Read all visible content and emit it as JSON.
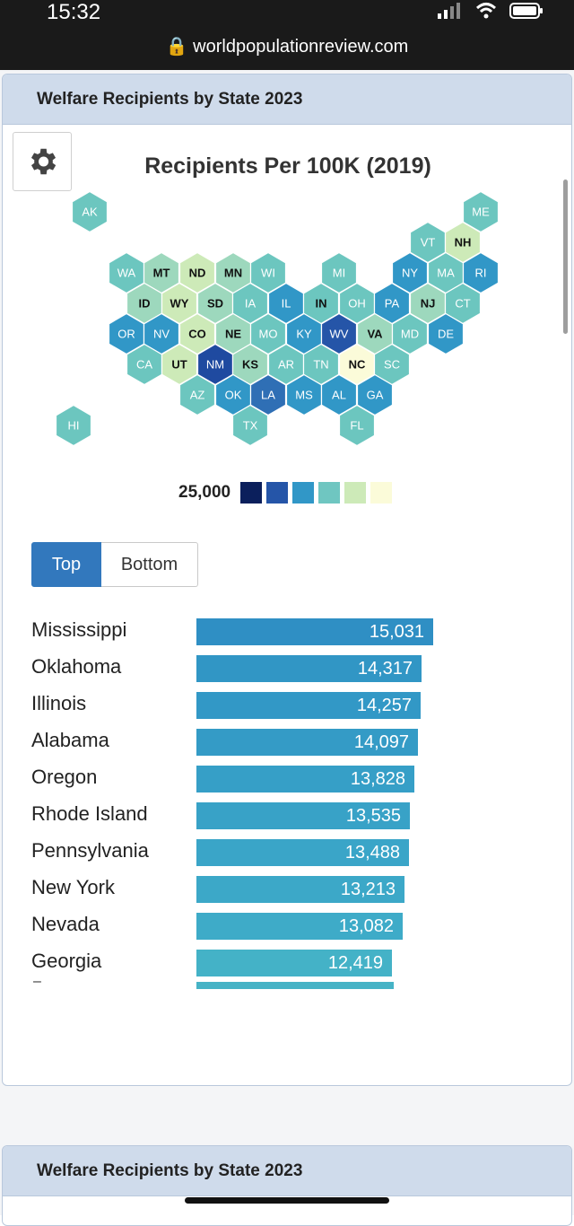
{
  "status": {
    "time": "15:32"
  },
  "browser": {
    "url": "worldpopulationreview.com"
  },
  "card": {
    "header": "Welfare Recipients by State 2023",
    "map_title": "Recipients Per 100K (2019)",
    "legend": {
      "label": "25,000",
      "colors": [
        "#0b1f5c",
        "#2555a8",
        "#3197c7",
        "#6fc6c1",
        "#cdeab8",
        "#fbfbd9"
      ]
    },
    "toggle": {
      "top_label": "Top",
      "bottom_label": "Bottom",
      "selected": "Top"
    },
    "rows": [
      {
        "state": "Mississippi",
        "value": "15,031",
        "fraction": 1.0,
        "color": "#2f8fc4"
      },
      {
        "state": "Oklahoma",
        "value": "14,317",
        "fraction": 0.952,
        "color": "#3196c5"
      },
      {
        "state": "Illinois",
        "value": "14,257",
        "fraction": 0.948,
        "color": "#3298c6"
      },
      {
        "state": "Alabama",
        "value": "14,097",
        "fraction": 0.937,
        "color": "#349bc6"
      },
      {
        "state": "Oregon",
        "value": "13,828",
        "fraction": 0.92,
        "color": "#369fc7"
      },
      {
        "state": "Rhode Island",
        "value": "13,535",
        "fraction": 0.9,
        "color": "#38a2c7"
      },
      {
        "state": "Pennsylvania",
        "value": "13,488",
        "fraction": 0.897,
        "color": "#3aa5c8"
      },
      {
        "state": "New York",
        "value": "13,213",
        "fraction": 0.879,
        "color": "#3ca8c8"
      },
      {
        "state": "Nevada",
        "value": "13,082",
        "fraction": 0.87,
        "color": "#3eabc8"
      },
      {
        "state": "Georgia",
        "value": "12,419",
        "fraction": 0.826,
        "color": "#44b2c7"
      }
    ],
    "trailing_dash": "–"
  },
  "card2": {
    "header": "Welfare Recipients by State 2023"
  },
  "hex_states": [
    {
      "abbr": "AK",
      "color": "#6cc6bf",
      "dark": false
    },
    {
      "abbr": "ME",
      "color": "#6cc6bf",
      "dark": false
    },
    {
      "abbr": "VT",
      "color": "#6cc6bf",
      "dark": false
    },
    {
      "abbr": "NH",
      "color": "#cdeab8",
      "dark": true
    },
    {
      "abbr": "WA",
      "color": "#6cc6bf",
      "dark": false
    },
    {
      "abbr": "MT",
      "color": "#9dd8bd",
      "dark": true
    },
    {
      "abbr": "ND",
      "color": "#cdeab8",
      "dark": true
    },
    {
      "abbr": "MN",
      "color": "#9dd8bd",
      "dark": true
    },
    {
      "abbr": "WI",
      "color": "#6cc6bf",
      "dark": false
    },
    {
      "abbr": "MI",
      "color": "#6cc6bf",
      "dark": false
    },
    {
      "abbr": "NY",
      "color": "#3197c7",
      "dark": false
    },
    {
      "abbr": "MA",
      "color": "#6cc6bf",
      "dark": false
    },
    {
      "abbr": "RI",
      "color": "#3197c7",
      "dark": false
    },
    {
      "abbr": "ID",
      "color": "#9dd8bd",
      "dark": true
    },
    {
      "abbr": "WY",
      "color": "#cdeab8",
      "dark": true
    },
    {
      "abbr": "SD",
      "color": "#9dd8bd",
      "dark": true
    },
    {
      "abbr": "IA",
      "color": "#6cc6bf",
      "dark": false
    },
    {
      "abbr": "IL",
      "color": "#3197c7",
      "dark": false
    },
    {
      "abbr": "IN",
      "color": "#6cc6bf",
      "dark": true
    },
    {
      "abbr": "OH",
      "color": "#6cc6bf",
      "dark": false
    },
    {
      "abbr": "PA",
      "color": "#3197c7",
      "dark": false
    },
    {
      "abbr": "NJ",
      "color": "#9dd8bd",
      "dark": true
    },
    {
      "abbr": "CT",
      "color": "#6cc6bf",
      "dark": false
    },
    {
      "abbr": "OR",
      "color": "#3197c7",
      "dark": false
    },
    {
      "abbr": "NV",
      "color": "#3197c7",
      "dark": false
    },
    {
      "abbr": "CO",
      "color": "#cdeab8",
      "dark": true
    },
    {
      "abbr": "NE",
      "color": "#9dd8bd",
      "dark": true
    },
    {
      "abbr": "MO",
      "color": "#6cc6bf",
      "dark": false
    },
    {
      "abbr": "KY",
      "color": "#3197c7",
      "dark": false
    },
    {
      "abbr": "WV",
      "color": "#2555a8",
      "dark": false
    },
    {
      "abbr": "VA",
      "color": "#9dd8bd",
      "dark": true
    },
    {
      "abbr": "MD",
      "color": "#6cc6bf",
      "dark": false
    },
    {
      "abbr": "DE",
      "color": "#3197c7",
      "dark": false
    },
    {
      "abbr": "CA",
      "color": "#6cc6bf",
      "dark": false
    },
    {
      "abbr": "UT",
      "color": "#cdeab8",
      "dark": true
    },
    {
      "abbr": "NM",
      "color": "#1f4aa0",
      "dark": false
    },
    {
      "abbr": "KS",
      "color": "#9dd8bd",
      "dark": true
    },
    {
      "abbr": "AR",
      "color": "#6cc6bf",
      "dark": false
    },
    {
      "abbr": "TN",
      "color": "#6cc6bf",
      "dark": false
    },
    {
      "abbr": "NC",
      "color": "#fbfbd9",
      "dark": true
    },
    {
      "abbr": "SC",
      "color": "#6cc6bf",
      "dark": false
    },
    {
      "abbr": "AZ",
      "color": "#6cc6bf",
      "dark": false
    },
    {
      "abbr": "OK",
      "color": "#3197c7",
      "dark": false
    },
    {
      "abbr": "LA",
      "color": "#2f6fb5",
      "dark": false
    },
    {
      "abbr": "MS",
      "color": "#3197c7",
      "dark": false
    },
    {
      "abbr": "AL",
      "color": "#3197c7",
      "dark": false
    },
    {
      "abbr": "GA",
      "color": "#3197c7",
      "dark": false
    },
    {
      "abbr": "HI",
      "color": "#6cc6bf",
      "dark": false
    },
    {
      "abbr": "TX",
      "color": "#6cc6bf",
      "dark": false
    },
    {
      "abbr": "FL",
      "color": "#6cc6bf",
      "dark": false
    }
  ]
}
